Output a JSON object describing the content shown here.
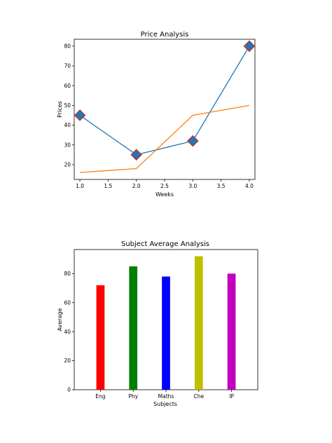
{
  "chart_data": [
    {
      "type": "line",
      "title": "Price Analysis",
      "xlabel": "Weeks",
      "ylabel": "Prices",
      "xlim": [
        0.9,
        4.1
      ],
      "ylim": [
        12.5,
        83.5
      ],
      "xticks": [
        1.0,
        1.5,
        2.0,
        2.5,
        3.0,
        3.5,
        4.0
      ],
      "xtick_labels": [
        "1.0",
        "1.5",
        "2.0",
        "2.5",
        "3.0",
        "3.5",
        "4.0"
      ],
      "yticks": [
        20,
        30,
        40,
        50,
        60,
        70,
        80
      ],
      "ytick_labels": [
        "20",
        "30",
        "40",
        "50",
        "60",
        "70",
        "80"
      ],
      "grid": false,
      "series": [
        {
          "x": [
            1,
            2,
            3,
            4
          ],
          "y": [
            45,
            25,
            32,
            80
          ],
          "color": "#1f77b4",
          "marker": "diamond",
          "marker_face": "#1f77b4",
          "marker_edge": "#d62728"
        },
        {
          "x": [
            1,
            2,
            3,
            4
          ],
          "y": [
            16,
            18,
            45,
            50
          ],
          "color": "#ff7f0e",
          "marker": "none"
        }
      ]
    },
    {
      "type": "bar",
      "title": "Subject Average Analysis",
      "xlabel": "Subjects",
      "ylabel": "Average",
      "categories": [
        "Eng",
        "Phy",
        "Maths",
        "Che",
        "IP"
      ],
      "values": [
        72,
        85,
        78,
        92,
        80
      ],
      "colors": [
        "#ff0000",
        "#008000",
        "#0000ff",
        "#bfbf00",
        "#bf00bf"
      ],
      "ylim": [
        0,
        96.6
      ],
      "yticks": [
        0,
        20,
        40,
        60,
        80
      ],
      "ytick_labels": [
        "0",
        "20",
        "40",
        "60",
        "80"
      ],
      "grid": false
    }
  ]
}
